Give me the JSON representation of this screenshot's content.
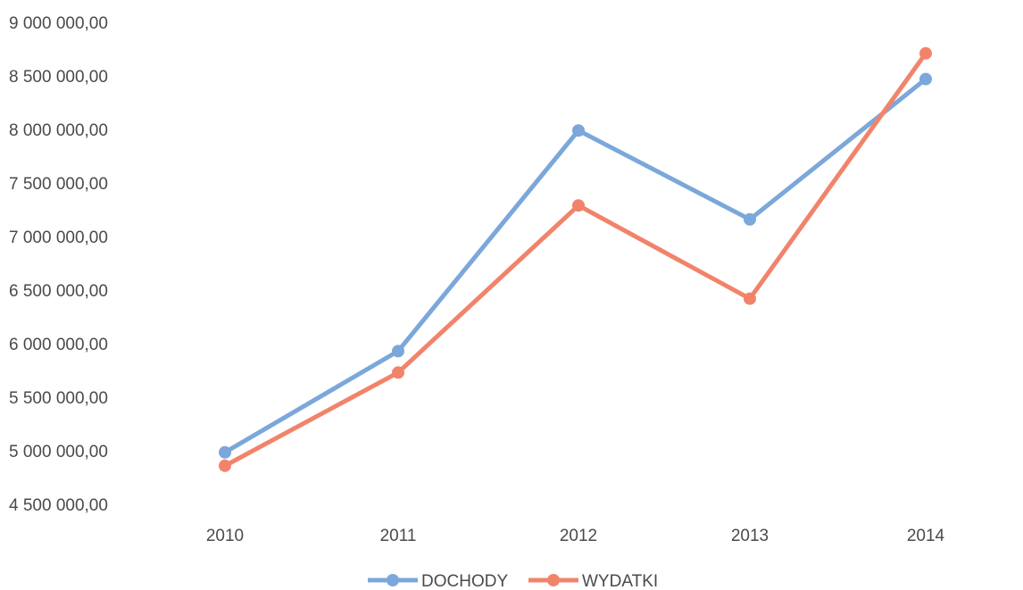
{
  "chart_data": {
    "type": "line",
    "title": "",
    "xlabel": "",
    "ylabel": "",
    "categories": [
      "2010",
      "2011",
      "2012",
      "2013",
      "2014"
    ],
    "series": [
      {
        "name": "DOCHODY",
        "color": "#7ba7db",
        "values": [
          4985000,
          5930000,
          7990000,
          7160000,
          8470000
        ]
      },
      {
        "name": "WYDATKI",
        "color": "#f2836b",
        "values": [
          4860000,
          5730000,
          7290000,
          6420000,
          8710000
        ]
      }
    ],
    "ylim": [
      4500000,
      9000000
    ],
    "yticks": [
      "4 500 000,00",
      "5 000 000,00",
      "5 500 000,00",
      "6 000 000,00",
      "6 500 000,00",
      "7 000 000,00",
      "7 500 000,00",
      "8 000 000,00",
      "8 500 000,00",
      "9 000 000,00"
    ],
    "grid": false,
    "legend": "bottom-center"
  }
}
